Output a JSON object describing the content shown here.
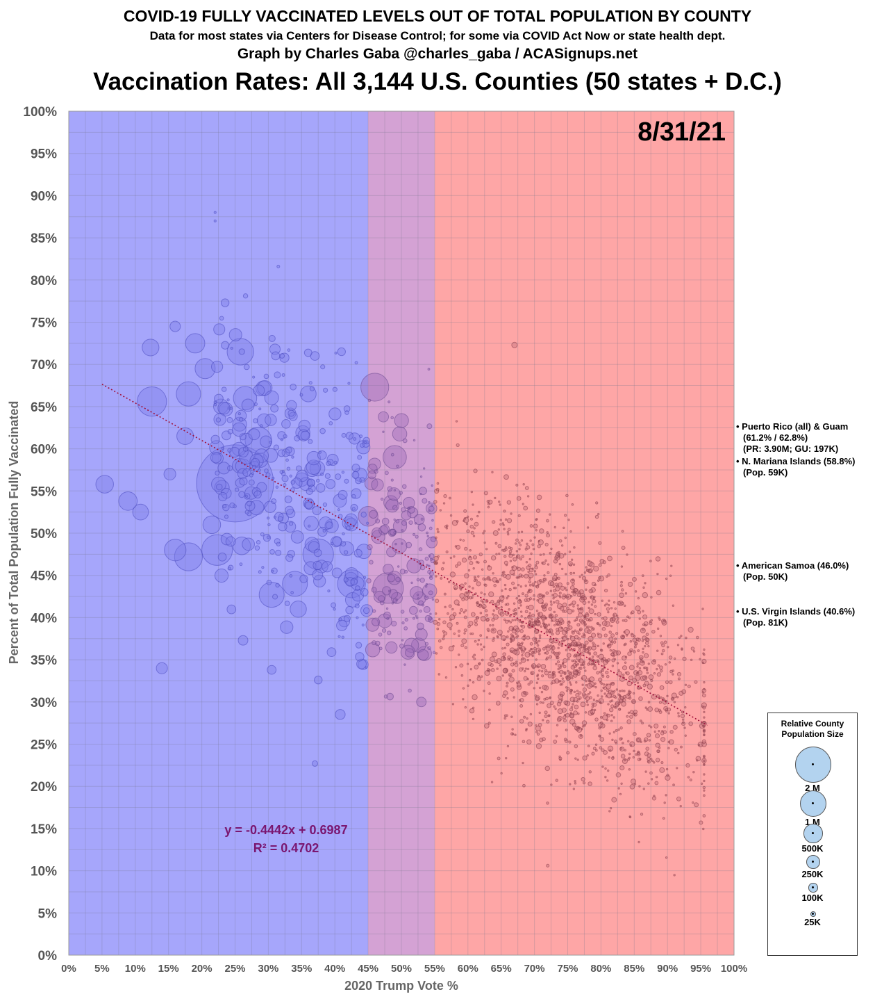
{
  "header": {
    "title": "COVID-19 FULLY VACCINATED LEVELS OUT OF TOTAL POPULATION BY COUNTY",
    "subtitle": "Data for most states via Centers for Disease Control; for some via COVID Act Now or state health dept.",
    "credit": "Graph by Charles Gaba @charles_gaba / ACASignups.net",
    "headline": "Vaccination Rates: All 3,144 U.S. Counties (50 states + D.C.)"
  },
  "chart_data": {
    "type": "scatter",
    "date_label": "8/31/21",
    "xlabel": "2020 Trump Vote %",
    "ylabel": "Percent of Total Population Fully Vaccinated",
    "xlim": [
      0,
      100
    ],
    "ylim": [
      0,
      100
    ],
    "x_ticks": [
      "0%",
      "5%",
      "10%",
      "15%",
      "20%",
      "25%",
      "30%",
      "35%",
      "40%",
      "45%",
      "50%",
      "55%",
      "60%",
      "65%",
      "70%",
      "75%",
      "80%",
      "85%",
      "90%",
      "95%",
      "100%"
    ],
    "y_ticks": [
      "0%",
      "5%",
      "10%",
      "15%",
      "20%",
      "25%",
      "30%",
      "35%",
      "40%",
      "45%",
      "50%",
      "55%",
      "60%",
      "65%",
      "70%",
      "75%",
      "80%",
      "85%",
      "90%",
      "95%",
      "100%"
    ],
    "grid": true,
    "background_bands": [
      {
        "from": 0,
        "to": 45,
        "color": "#a6a6fb"
      },
      {
        "from": 45,
        "to": 55,
        "color": "#d4a2d4"
      },
      {
        "from": 55,
        "to": 100,
        "color": "#fea6a6"
      }
    ],
    "trendline": {
      "slope": -0.4442,
      "intercept": 0.6987,
      "x_start": 5,
      "x_end": 96,
      "color": "#a0103a"
    },
    "equation": "y = -0.4442x + 0.6987",
    "r_squared": "R² = 0.4702",
    "colors": {
      "blue_bubble": "#7c7ce8",
      "purple_bubble": "#9a6ab8",
      "red_bubble": "#c26e7a"
    },
    "highlighted_points": [
      {
        "x": 5.4,
        "y": 55.8,
        "pop_k": 2000
      },
      {
        "x": 8.9,
        "y": 53.8,
        "pop_k": 2200
      },
      {
        "x": 10.8,
        "y": 52.5,
        "pop_k": 1600
      },
      {
        "x": 12.3,
        "y": 72.0,
        "pop_k": 1800
      },
      {
        "x": 12.5,
        "y": 65.6,
        "pop_k": 5500
      },
      {
        "x": 14.0,
        "y": 34.0,
        "pop_k": 800
      },
      {
        "x": 15.2,
        "y": 57.0,
        "pop_k": 900
      },
      {
        "x": 16.0,
        "y": 48.0,
        "pop_k": 3000
      },
      {
        "x": 16.0,
        "y": 74.5,
        "pop_k": 700
      },
      {
        "x": 17.5,
        "y": 61.5,
        "pop_k": 1800
      },
      {
        "x": 18.0,
        "y": 47.2,
        "pop_k": 5000
      },
      {
        "x": 18.0,
        "y": 66.5,
        "pop_k": 3800
      },
      {
        "x": 19.0,
        "y": 72.5,
        "pop_k": 2400
      },
      {
        "x": 20.5,
        "y": 69.5,
        "pop_k": 2600
      },
      {
        "x": 21.5,
        "y": 51.0,
        "pop_k": 2000
      },
      {
        "x": 22.3,
        "y": 48.0,
        "pop_k": 6000
      },
      {
        "x": 22.0,
        "y": 88.0,
        "pop_k": 30
      },
      {
        "x": 22.0,
        "y": 87.0,
        "pop_k": 30
      },
      {
        "x": 23.5,
        "y": 77.3,
        "pop_k": 400
      },
      {
        "x": 25.0,
        "y": 55.9,
        "pop_k": 38000
      },
      {
        "x": 25.8,
        "y": 71.5,
        "pop_k": 4500
      },
      {
        "x": 26.5,
        "y": 66.0,
        "pop_k": 3500
      },
      {
        "x": 26.0,
        "y": 48.5,
        "pop_k": 2000
      },
      {
        "x": 26.2,
        "y": 37.3,
        "pop_k": 600
      },
      {
        "x": 28.5,
        "y": 61.0,
        "pop_k": 4500
      },
      {
        "x": 30.5,
        "y": 42.7,
        "pop_k": 4000
      },
      {
        "x": 30.5,
        "y": 33.8,
        "pop_k": 500
      },
      {
        "x": 31.0,
        "y": 71.8,
        "pop_k": 700
      },
      {
        "x": 31.5,
        "y": 81.6,
        "pop_k": 50
      },
      {
        "x": 34.0,
        "y": 44.0,
        "pop_k": 4000
      },
      {
        "x": 34.5,
        "y": 41.0,
        "pop_k": 1700
      },
      {
        "x": 36.0,
        "y": 66.5,
        "pop_k": 1600
      },
      {
        "x": 37.0,
        "y": 71.0,
        "pop_k": 500
      },
      {
        "x": 37.5,
        "y": 47.5,
        "pop_k": 6000
      },
      {
        "x": 37.5,
        "y": 32.6,
        "pop_k": 400
      },
      {
        "x": 37.0,
        "y": 22.7,
        "pop_k": 200
      },
      {
        "x": 39.5,
        "y": 35.9,
        "pop_k": 500
      },
      {
        "x": 41.0,
        "y": 71.5,
        "pop_k": 400
      },
      {
        "x": 42.5,
        "y": 44.0,
        "pop_k": 5000
      },
      {
        "x": 44.0,
        "y": 34.5,
        "pop_k": 600
      },
      {
        "x": 45.0,
        "y": 52.0,
        "pop_k": 2500
      },
      {
        "x": 46.0,
        "y": 67.3,
        "pop_k": 5000
      },
      {
        "x": 48.0,
        "y": 43.5,
        "pop_k": 6000
      },
      {
        "x": 49.0,
        "y": 59.0,
        "pop_k": 3500
      },
      {
        "x": 53.0,
        "y": 38.0,
        "pop_k": 900
      },
      {
        "x": 53.0,
        "y": 30.0,
        "pop_k": 600
      },
      {
        "x": 67.0,
        "y": 72.3,
        "pop_k": 200
      },
      {
        "x": 72.0,
        "y": 10.6,
        "pop_k": 50
      }
    ],
    "territories": [
      {
        "name": "Puerto Rico (all) & Guam",
        "value_text": "(61.2% / 62.8%)",
        "pop_text": "(PR: 3.90M; GU: 197K)"
      },
      {
        "name": "N. Mariana Islands (58.8%)",
        "pop_text": "(Pop. 59K)"
      },
      {
        "name": "American Samoa (46.0%)",
        "pop_text": "(Pop. 50K)"
      },
      {
        "name": "U.S. Virgin Islands (40.6%)",
        "pop_text": "(Pop. 81K)"
      }
    ],
    "size_legend": {
      "title": "Relative County Population Size",
      "entries": [
        {
          "label": "2 M",
          "pop_k": 2000
        },
        {
          "label": "1 M",
          "pop_k": 1000
        },
        {
          "label": "500K",
          "pop_k": 500
        },
        {
          "label": "250K",
          "pop_k": 250
        },
        {
          "label": "100K",
          "pop_k": 100
        },
        {
          "label": "25K",
          "pop_k": 25
        }
      ]
    }
  }
}
